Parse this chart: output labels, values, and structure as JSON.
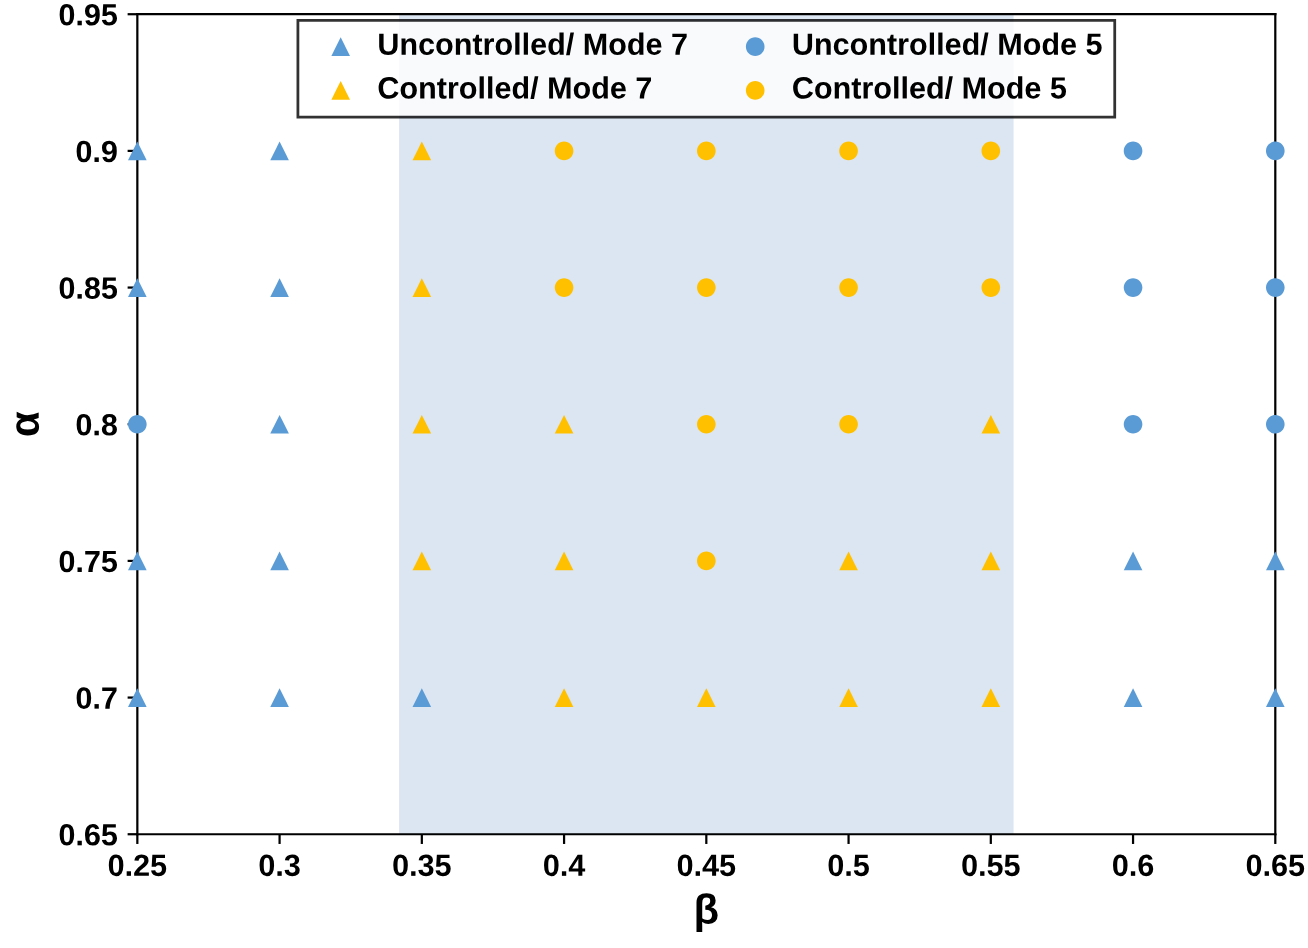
{
  "chart_data": {
    "type": "scatter",
    "xlabel": "β",
    "ylabel": "α",
    "xlim": [
      0.25,
      0.65
    ],
    "ylim": [
      0.65,
      0.95
    ],
    "xticks": [
      0.25,
      0.3,
      0.35,
      0.4,
      0.45,
      0.5,
      0.55,
      0.6,
      0.65
    ],
    "yticks": [
      0.65,
      0.7,
      0.75,
      0.8,
      0.85,
      0.9,
      0.95
    ],
    "grid": false,
    "legend": "top",
    "bands": [
      {
        "axis": "x",
        "from": 0.342,
        "to": 0.558,
        "color": "#dce6f2"
      }
    ],
    "series": [
      {
        "name": "Uncontrolled/ Mode 7",
        "color": "#5b9bd5",
        "marker": "triangle",
        "x": [
          0.25,
          0.25,
          0.25,
          0.25,
          0.3,
          0.3,
          0.3,
          0.3,
          0.3,
          0.35,
          0.6,
          0.6,
          0.65,
          0.65
        ],
        "values": [
          0.9,
          0.85,
          0.75,
          0.7,
          0.9,
          0.85,
          0.8,
          0.75,
          0.7,
          0.7,
          0.75,
          0.7,
          0.75,
          0.7
        ]
      },
      {
        "name": "Uncontrolled/ Mode 5",
        "color": "#5b9bd5",
        "marker": "circle",
        "x": [
          0.25,
          0.6,
          0.6,
          0.6,
          0.65,
          0.65,
          0.65
        ],
        "values": [
          0.8,
          0.9,
          0.85,
          0.8,
          0.9,
          0.85,
          0.8
        ]
      },
      {
        "name": "Controlled/ Mode 7",
        "color": "#ffc000",
        "marker": "triangle",
        "x": [
          0.35,
          0.35,
          0.35,
          0.35,
          0.4,
          0.4,
          0.4,
          0.45,
          0.5,
          0.5,
          0.55,
          0.55,
          0.55
        ],
        "values": [
          0.9,
          0.85,
          0.8,
          0.75,
          0.8,
          0.75,
          0.7,
          0.7,
          0.75,
          0.7,
          0.8,
          0.75,
          0.7
        ]
      },
      {
        "name": "Controlled/ Mode 5",
        "color": "#ffc000",
        "marker": "circle",
        "x": [
          0.4,
          0.4,
          0.45,
          0.45,
          0.45,
          0.45,
          0.5,
          0.5,
          0.5,
          0.55,
          0.55
        ],
        "values": [
          0.9,
          0.85,
          0.9,
          0.85,
          0.8,
          0.75,
          0.9,
          0.85,
          0.8,
          0.9,
          0.85
        ]
      }
    ]
  }
}
